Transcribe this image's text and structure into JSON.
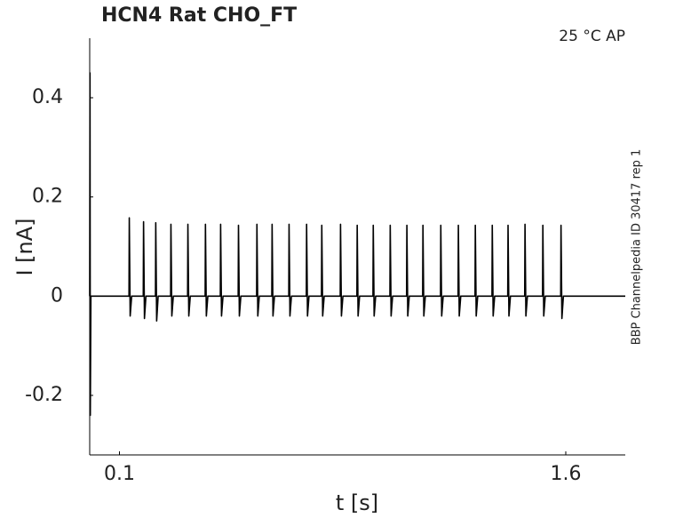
{
  "chart_data": {
    "type": "line",
    "title": "HCN4  Rat  CHO_FT",
    "annotation": "25 °C  AP",
    "side_note": "BBP Channelpedia ID 30417 rep 1",
    "x_label": "t [s]",
    "y_label": "I [nA]",
    "xlim": [
      0,
      1.8
    ],
    "ylim": [
      -0.32,
      0.52
    ],
    "xticks": [
      0.1,
      1.6
    ],
    "yticks": [
      -0.2,
      0,
      0.2,
      0.4
    ],
    "grid": false,
    "x": [
      0,
      0.001,
      0.002,
      0.004,
      0.132,
      0.133,
      0.136,
      0.141,
      0.18,
      0.181,
      0.184,
      0.189,
      0.221,
      0.222,
      0.225,
      0.23,
      0.272,
      0.273,
      0.276,
      0.281,
      0.329,
      0.33,
      0.333,
      0.338,
      0.388,
      0.389,
      0.392,
      0.397,
      0.439,
      0.44,
      0.443,
      0.448,
      0.499,
      0.5,
      0.503,
      0.508,
      0.561,
      0.562,
      0.565,
      0.57,
      0.612,
      0.613,
      0.616,
      0.621,
      0.669,
      0.67,
      0.673,
      0.678,
      0.728,
      0.729,
      0.732,
      0.737,
      0.779,
      0.78,
      0.783,
      0.788,
      0.842,
      0.843,
      0.846,
      0.851,
      0.898,
      0.899,
      0.902,
      0.907,
      0.952,
      0.953,
      0.956,
      0.961,
      1.009,
      1.01,
      1.013,
      1.018,
      1.065,
      1.066,
      1.069,
      1.074,
      1.119,
      1.12,
      1.123,
      1.128,
      1.179,
      1.18,
      1.183,
      1.188,
      1.238,
      1.239,
      1.242,
      1.247,
      1.295,
      1.296,
      1.299,
      1.304,
      1.352,
      1.353,
      1.356,
      1.361,
      1.405,
      1.406,
      1.409,
      1.414,
      1.462,
      1.463,
      1.466,
      1.471,
      1.522,
      1.523,
      1.526,
      1.531,
      1.583,
      1.584,
      1.587,
      1.592,
      1.8
    ],
    "series": [
      {
        "name": "trace",
        "color": "#000000",
        "values": [
          0,
          0.45,
          -0.24,
          0,
          0,
          0.158,
          -0.04,
          0,
          0,
          0.15,
          -0.045,
          0,
          0,
          0.148,
          -0.05,
          0,
          0,
          0.145,
          -0.04,
          0,
          0,
          0.145,
          -0.04,
          0,
          0,
          0.145,
          -0.04,
          0,
          0,
          0.145,
          -0.04,
          0,
          0,
          0.143,
          -0.04,
          0,
          0,
          0.145,
          -0.04,
          0,
          0,
          0.145,
          -0.04,
          0,
          0,
          0.145,
          -0.04,
          0,
          0,
          0.145,
          -0.04,
          0,
          0,
          0.143,
          -0.04,
          0,
          0,
          0.145,
          -0.04,
          0,
          0,
          0.143,
          -0.04,
          0,
          0,
          0.143,
          -0.04,
          0,
          0,
          0.143,
          -0.04,
          0,
          0,
          0.143,
          -0.04,
          0,
          0,
          0.143,
          -0.04,
          0,
          0,
          0.143,
          -0.04,
          0,
          0,
          0.143,
          -0.04,
          0,
          0,
          0.143,
          -0.04,
          0,
          0,
          0.143,
          -0.04,
          0,
          0,
          0.143,
          -0.04,
          0,
          0,
          0.145,
          -0.04,
          0,
          0,
          0.143,
          -0.04,
          0,
          0,
          0.143,
          -0.045,
          0,
          0
        ]
      }
    ]
  }
}
